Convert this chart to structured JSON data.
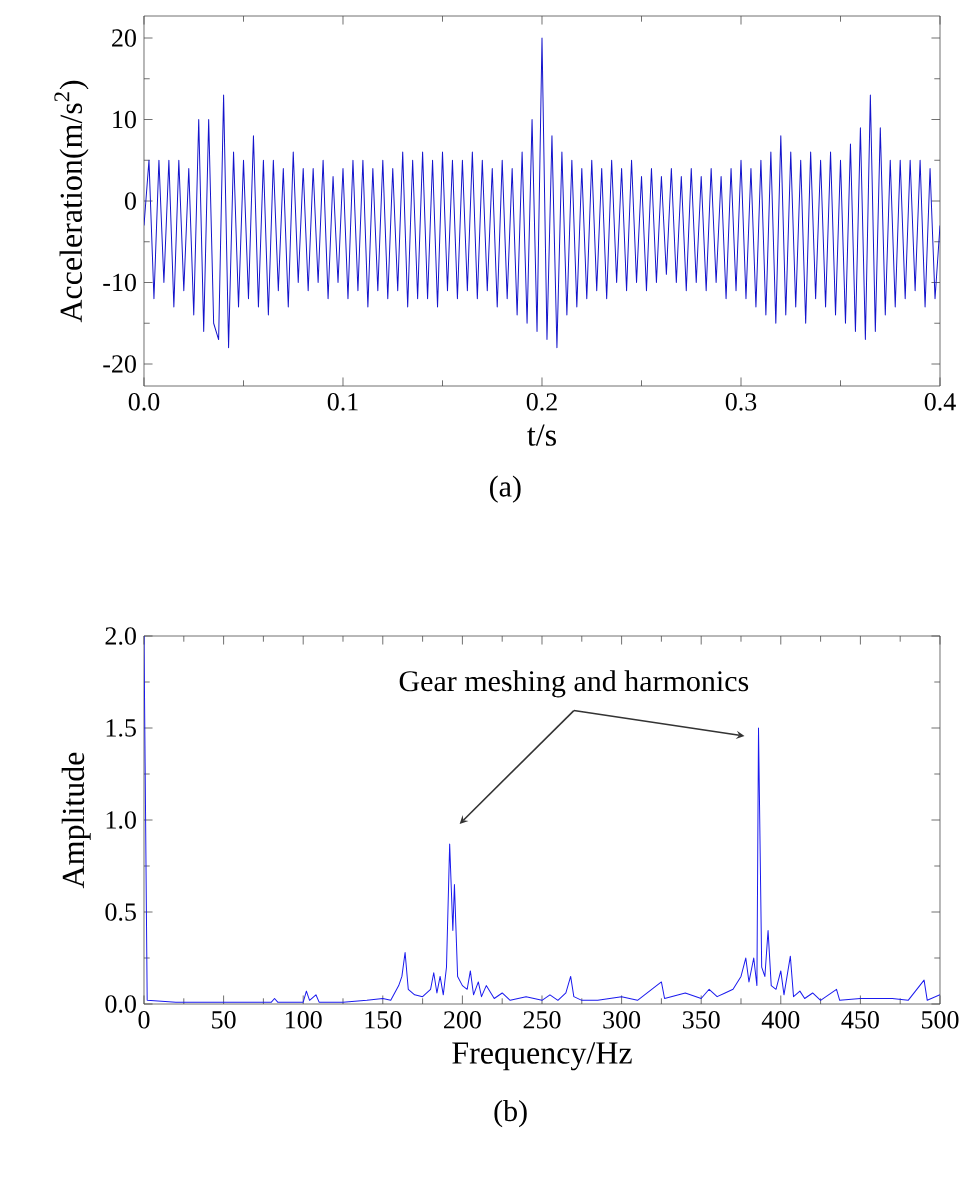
{
  "chart_data": [
    {
      "type": "line",
      "xlabel": "t/s",
      "ylabel": "Acceleration(m/s$^{2}$)",
      "color": "#1414cc",
      "x": [
        0,
        0.0025,
        0.005,
        0.0075,
        0.01,
        0.0125,
        0.015,
        0.0175,
        0.02,
        0.0225,
        0.025,
        0.0275,
        0.03,
        0.0325,
        0.035,
        0.0375,
        0.04,
        0.0425,
        0.045,
        0.0475,
        0.05,
        0.0525,
        0.055,
        0.0575,
        0.06,
        0.0625,
        0.065,
        0.0675,
        0.07,
        0.0725,
        0.075,
        0.0775,
        0.08,
        0.0825,
        0.085,
        0.0875,
        0.09,
        0.0925,
        0.095,
        0.0975,
        0.1,
        0.1025,
        0.105,
        0.1075,
        0.11,
        0.1125,
        0.115,
        0.1175,
        0.12,
        0.1225,
        0.125,
        0.1275,
        0.13,
        0.1325,
        0.135,
        0.1375,
        0.14,
        0.1425,
        0.145,
        0.1475,
        0.15,
        0.1525,
        0.155,
        0.1575,
        0.16,
        0.1625,
        0.165,
        0.1675,
        0.17,
        0.1725,
        0.175,
        0.1775,
        0.18,
        0.1825,
        0.185,
        0.1875,
        0.19,
        0.1925,
        0.195,
        0.1975,
        0.2,
        0.2025,
        0.205,
        0.2075,
        0.21,
        0.2125,
        0.215,
        0.2175,
        0.22,
        0.2225,
        0.225,
        0.2275,
        0.23,
        0.2325,
        0.235,
        0.2375,
        0.24,
        0.2425,
        0.245,
        0.2475,
        0.25,
        0.2525,
        0.255,
        0.2575,
        0.26,
        0.2625,
        0.265,
        0.2675,
        0.27,
        0.2725,
        0.275,
        0.2775,
        0.28,
        0.2825,
        0.285,
        0.2875,
        0.29,
        0.2925,
        0.295,
        0.2975,
        0.3,
        0.3025,
        0.305,
        0.3075,
        0.31,
        0.3125,
        0.315,
        0.3175,
        0.32,
        0.3225,
        0.325,
        0.3275,
        0.33,
        0.3325,
        0.335,
        0.3375,
        0.34,
        0.3425,
        0.345,
        0.3475,
        0.35,
        0.3525,
        0.355,
        0.3575,
        0.36,
        0.3625,
        0.365,
        0.3675,
        0.37,
        0.3725,
        0.375,
        0.3775,
        0.38,
        0.3825,
        0.385,
        0.3875,
        0.39,
        0.3925,
        0.395,
        0.3975,
        0.4
      ],
      "values": [
        -3,
        5,
        -12,
        5,
        -10,
        5,
        -13,
        5,
        -11,
        4,
        -14,
        10,
        -16,
        10,
        -15,
        -17,
        13,
        -18,
        6,
        -13,
        5,
        -12,
        8,
        -13,
        5,
        -14,
        5,
        -11,
        4,
        -13,
        6,
        -10,
        4,
        -11,
        4,
        -10,
        5,
        -12,
        3,
        -10,
        4,
        -12,
        5,
        -11,
        5,
        -13,
        4,
        -11,
        5,
        -12,
        4,
        -11,
        6,
        -13,
        5,
        -12,
        6,
        -12,
        5,
        -13,
        6,
        -11,
        5,
        -12,
        5,
        -11,
        6,
        -12,
        5,
        -11,
        4,
        -13,
        5,
        -12,
        4,
        -14,
        6,
        -15,
        10,
        -16,
        20,
        -17,
        8,
        -18,
        6,
        -14,
        5,
        -13,
        4,
        -12,
        5,
        -11,
        4,
        -12,
        5,
        -10,
        4,
        -11,
        5,
        -10,
        3,
        -11,
        4,
        -10,
        3,
        -9,
        4,
        -10,
        3,
        -11,
        4,
        -10,
        3,
        -11,
        4,
        -10,
        3,
        -12,
        4,
        -11,
        5,
        -12,
        4,
        -13,
        5,
        -14,
        6,
        -15,
        8,
        -14,
        6,
        -13,
        5,
        -15,
        6,
        -12,
        5,
        -13,
        6,
        -14,
        5,
        -15,
        7,
        -16,
        9,
        -17,
        13,
        -16,
        9,
        -14,
        5,
        -13,
        5,
        -12,
        5,
        -11,
        5,
        -13,
        4,
        -12,
        -3
      ],
      "xlim": [
        0,
        0.4
      ],
      "xticks": [
        {
          "value": 0,
          "label": "0.0"
        },
        {
          "value": 0.1,
          "label": "0.1"
        },
        {
          "value": 0.2,
          "label": "0.2"
        },
        {
          "value": 0.3,
          "label": "0.3"
        },
        {
          "value": 0.4,
          "label": "0.4"
        }
      ],
      "ylim": [
        -22.7,
        22.7
      ],
      "yticks": [
        -20,
        -10,
        0,
        10,
        20
      ],
      "annotations": [
        "(a)"
      ]
    },
    {
      "type": "line",
      "xlabel": "Frequency/Hz",
      "ylabel": "Amplitude",
      "color": "#1a1aee",
      "x": [
        0,
        2,
        20,
        50,
        80,
        82,
        84,
        100,
        102,
        104,
        108,
        110,
        125,
        140,
        150,
        155,
        160,
        162,
        164,
        166,
        170,
        175,
        180,
        182,
        184,
        186,
        188,
        190,
        192,
        194,
        195,
        197,
        200,
        203,
        205,
        207,
        210,
        212,
        215,
        220,
        225,
        230,
        240,
        250,
        255,
        260,
        265,
        268,
        270,
        275,
        285,
        300,
        310,
        325,
        327,
        340,
        350,
        355,
        360,
        365,
        370,
        375,
        378,
        380,
        383,
        385,
        386,
        388,
        390,
        392,
        394,
        397,
        400,
        402,
        406,
        408,
        412,
        415,
        420,
        425,
        435,
        437,
        450,
        470,
        480,
        490,
        492,
        500
      ],
      "values": [
        2.0,
        0.02,
        0.01,
        0.01,
        0.01,
        0.03,
        0.01,
        0.01,
        0.07,
        0.02,
        0.05,
        0.01,
        0.01,
        0.02,
        0.03,
        0.02,
        0.1,
        0.15,
        0.28,
        0.08,
        0.05,
        0.04,
        0.08,
        0.17,
        0.06,
        0.15,
        0.05,
        0.2,
        0.87,
        0.4,
        0.65,
        0.15,
        0.1,
        0.08,
        0.18,
        0.05,
        0.12,
        0.04,
        0.1,
        0.03,
        0.06,
        0.02,
        0.04,
        0.02,
        0.05,
        0.02,
        0.06,
        0.15,
        0.04,
        0.02,
        0.02,
        0.04,
        0.02,
        0.12,
        0.03,
        0.06,
        0.03,
        0.08,
        0.04,
        0.06,
        0.08,
        0.15,
        0.25,
        0.12,
        0.25,
        0.1,
        1.5,
        0.2,
        0.15,
        0.4,
        0.1,
        0.08,
        0.18,
        0.05,
        0.26,
        0.04,
        0.07,
        0.03,
        0.06,
        0.02,
        0.08,
        0.02,
        0.03,
        0.03,
        0.02,
        0.13,
        0.02,
        0.05
      ],
      "xlim": [
        0,
        500
      ],
      "xticks": [
        0,
        50,
        100,
        150,
        200,
        250,
        300,
        350,
        400,
        450,
        500
      ],
      "ylim": [
        0,
        2
      ],
      "yticks": [
        {
          "value": 0,
          "label": "0.0"
        },
        {
          "value": 0.5,
          "label": "0.5"
        },
        {
          "value": 1,
          "label": "1.0"
        },
        {
          "value": 1.5,
          "label": "1.5"
        },
        {
          "value": 2,
          "label": "2.0"
        }
      ],
      "annotations": [
        {
          "text": "Gear meshing and harmonics",
          "x": 386,
          "y": 1.5
        },
        "(b)"
      ]
    }
  ]
}
